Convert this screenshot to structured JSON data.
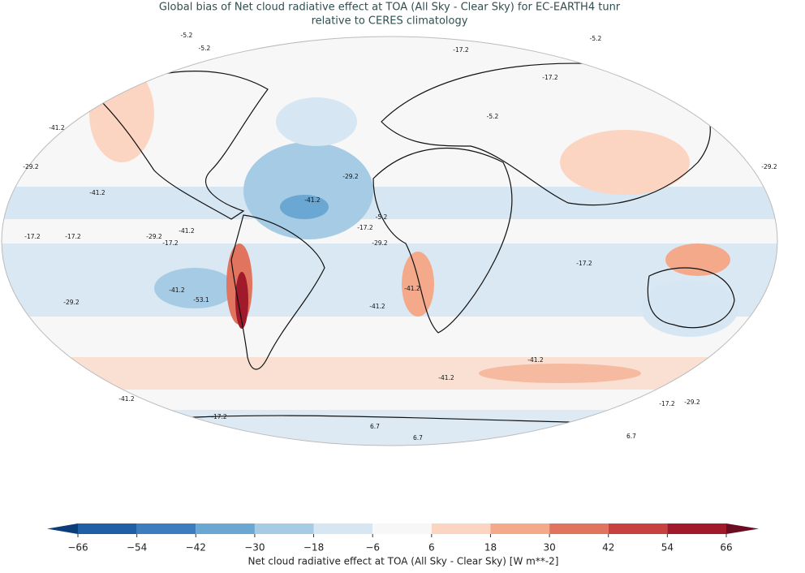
{
  "title": [
    "Global bias of Net cloud radiative effect at TOA (All Sky - Clear Sky) for EC-EARTH4 tunr",
    "relative to CERES climatology"
  ],
  "colorbar": {
    "label": "Net cloud radiative effect at TOA (All Sky - Clear Sky) [W m**-2]",
    "ticks": [
      {
        "value": -66,
        "label": "−66"
      },
      {
        "value": -54,
        "label": "−54"
      },
      {
        "value": -42,
        "label": "−42"
      },
      {
        "value": -30,
        "label": "−30"
      },
      {
        "value": -18,
        "label": "−18"
      },
      {
        "value": -6,
        "label": "−6"
      },
      6,
      18,
      30,
      42,
      54,
      66
    ],
    "colors": [
      "#1f5fa6",
      "#3b7dbd",
      "#6aa7d3",
      "#a6cbe4",
      "#d6e6f2",
      "#f7f7f7",
      "#fbd5c2",
      "#f3a98a",
      "#e0745f",
      "#c7413f",
      "#a11a2b"
    ],
    "under_color": "#0b3d7a",
    "over_color": "#6b0d20"
  },
  "contour_labels": [
    "-5.2",
    "-5.2",
    "-17.2",
    "-17.2",
    "-41.2",
    "-29.2",
    "-41.2",
    "-17.2",
    "-41.2",
    "-29.2",
    "-17.2",
    "-17.2",
    "-41.2",
    "-53.1",
    "-29.2",
    "-41.2",
    "-41.2",
    "-41.2",
    "-29.2",
    "-29.2",
    "-17.2",
    "-17.2",
    "-29.2",
    "-5.2",
    "-41.2",
    "-41.2",
    "-17.2",
    "6.7",
    "6.7",
    "6.7",
    "-5.2",
    "-29.2",
    "-17.2",
    "-5.2",
    "-41.2"
  ]
}
